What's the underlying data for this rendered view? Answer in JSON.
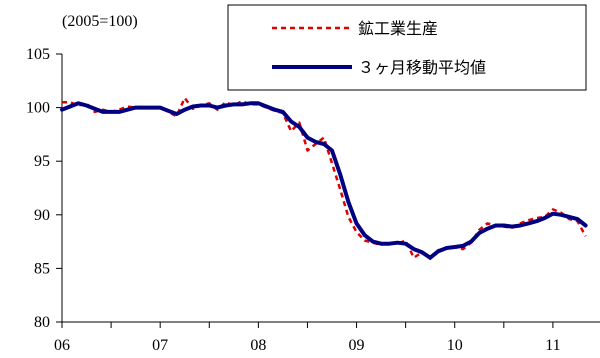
{
  "chart_data": {
    "type": "line",
    "unit_label": "(2005=100)",
    "x_ticks": [
      "06",
      "07",
      "08",
      "09",
      "10",
      "11"
    ],
    "y_ticks": [
      80,
      85,
      90,
      95,
      100,
      105
    ],
    "xlim": [
      2006.0,
      2011.5
    ],
    "ylim": [
      80,
      105
    ],
    "grid": false,
    "legend_position": "top-right",
    "x": [
      2006.0,
      2006.083,
      2006.167,
      2006.25,
      2006.333,
      2006.417,
      2006.5,
      2006.583,
      2006.667,
      2006.75,
      2006.833,
      2006.917,
      2007.0,
      2007.083,
      2007.167,
      2007.25,
      2007.333,
      2007.417,
      2007.5,
      2007.583,
      2007.667,
      2007.75,
      2007.833,
      2007.917,
      2008.0,
      2008.083,
      2008.167,
      2008.25,
      2008.333,
      2008.417,
      2008.5,
      2008.583,
      2008.667,
      2008.75,
      2008.833,
      2008.917,
      2009.0,
      2009.083,
      2009.167,
      2009.25,
      2009.333,
      2009.417,
      2009.5,
      2009.583,
      2009.667,
      2009.75,
      2009.833,
      2009.917,
      2010.0,
      2010.083,
      2010.167,
      2010.25,
      2010.333,
      2010.417,
      2010.5,
      2010.583,
      2010.667,
      2010.75,
      2010.833,
      2010.917,
      2011.0,
      2011.083,
      2011.167,
      2011.25,
      2011.333
    ],
    "series": [
      {
        "name": "鉱工業生産",
        "color": "#e00000",
        "style": "dashed",
        "values": [
          100.5,
          100.5,
          100.2,
          100.4,
          99.6,
          99.8,
          99.6,
          99.8,
          100.1,
          100.0,
          100.1,
          99.9,
          100.0,
          99.6,
          99.2,
          100.9,
          99.9,
          100.2,
          100.4,
          99.8,
          100.5,
          100.2,
          100.6,
          100.3,
          100.3,
          100.0,
          99.7,
          99.5,
          97.8,
          98.6,
          96.0,
          96.6,
          97.2,
          94.8,
          92.4,
          89.8,
          88.4,
          87.6,
          87.4,
          87.2,
          87.4,
          87.3,
          87.6,
          86.0,
          86.5,
          85.9,
          86.7,
          86.9,
          87.0,
          86.8,
          87.4,
          88.6,
          89.2,
          89.0,
          88.9,
          88.8,
          89.2,
          89.5,
          89.7,
          89.8,
          90.5,
          90.2,
          89.6,
          89.4,
          88.0
        ]
      },
      {
        "name": "３ヶ月移動平均値",
        "color": "#000080",
        "style": "solid",
        "values": [
          99.8,
          100.1,
          100.4,
          100.2,
          99.9,
          99.6,
          99.6,
          99.6,
          99.8,
          100.0,
          100.0,
          100.0,
          100.0,
          99.7,
          99.4,
          99.8,
          100.1,
          100.2,
          100.2,
          100.0,
          100.2,
          100.3,
          100.3,
          100.4,
          100.4,
          100.1,
          99.8,
          99.6,
          98.7,
          98.2,
          97.2,
          96.8,
          96.6,
          96.0,
          93.8,
          91.2,
          89.2,
          88.1,
          87.5,
          87.3,
          87.3,
          87.4,
          87.3,
          86.8,
          86.5,
          86.0,
          86.6,
          86.9,
          87.0,
          87.1,
          87.5,
          88.3,
          88.7,
          89.0,
          89.0,
          88.9,
          89.0,
          89.2,
          89.4,
          89.7,
          90.1,
          90.0,
          89.8,
          89.6,
          89.0
        ]
      }
    ]
  }
}
